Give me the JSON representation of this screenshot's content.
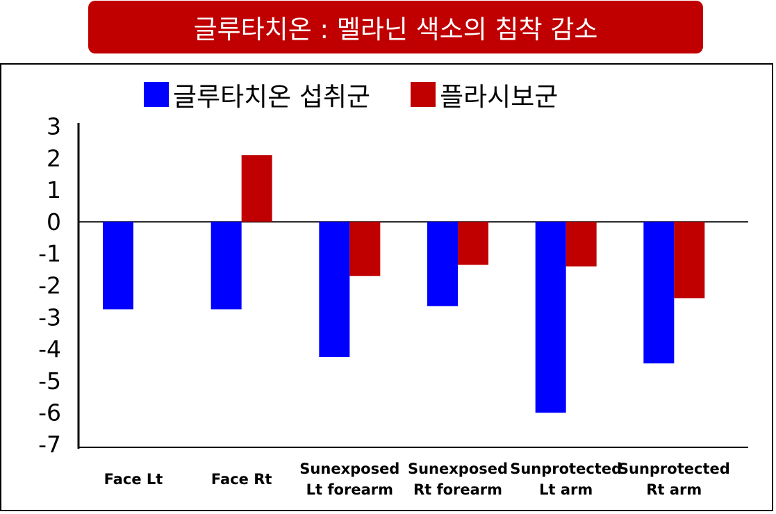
{
  "title": "글루타치온 : 멜라닌 색소의 침착 감소",
  "chart_data": {
    "type": "bar",
    "categories": [
      [
        "Face  Lt"
      ],
      [
        "Face  Rt"
      ],
      [
        "Sunexposed",
        "Lt forearm"
      ],
      [
        "Sunexposed",
        "Rt forearm"
      ],
      [
        "Sunprotected",
        "Lt arm"
      ],
      [
        "Sunprotected",
        "Rt arm"
      ]
    ],
    "series": [
      {
        "name": "글루타치온 섭취군",
        "color": "#0000ff",
        "values": [
          -2.75,
          -2.75,
          -4.25,
          -2.65,
          -6.0,
          -4.45
        ]
      },
      {
        "name": "플라시보군",
        "color": "#c00000",
        "values": [
          null,
          2.1,
          -1.7,
          -1.35,
          -1.4,
          -2.4
        ]
      }
    ],
    "ylim": [
      -7,
      3
    ],
    "yticks": [
      3,
      2,
      1,
      0,
      -1,
      -2,
      -3,
      -4,
      -5,
      -6,
      -7
    ],
    "legend_position": "top",
    "grid": false
  }
}
